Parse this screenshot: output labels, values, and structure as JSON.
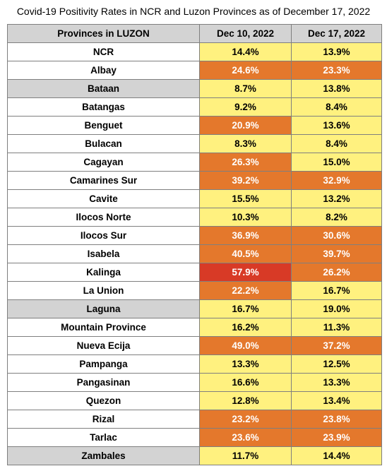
{
  "chart_data": {
    "type": "table",
    "title": "Covid-19 Positivity Rates in NCR and Luzon Provinces as of December 17, 2022",
    "columns": [
      "Provinces in LUZON",
      "Dec 10, 2022",
      "Dec 17, 2022"
    ],
    "rows": [
      {
        "province": "NCR",
        "dec10": "14.4%",
        "dec17": "13.9%",
        "dec10_level": "yellow",
        "dec17_level": "yellow",
        "highlight": false
      },
      {
        "province": "Albay",
        "dec10": "24.6%",
        "dec17": "23.3%",
        "dec10_level": "orange",
        "dec17_level": "orange",
        "highlight": false
      },
      {
        "province": "Bataan",
        "dec10": "8.7%",
        "dec17": "13.8%",
        "dec10_level": "yellow",
        "dec17_level": "yellow",
        "highlight": true
      },
      {
        "province": "Batangas",
        "dec10": "9.2%",
        "dec17": "8.4%",
        "dec10_level": "yellow",
        "dec17_level": "yellow",
        "highlight": false
      },
      {
        "province": "Benguet",
        "dec10": "20.9%",
        "dec17": "13.6%",
        "dec10_level": "orange",
        "dec17_level": "yellow",
        "highlight": false
      },
      {
        "province": "Bulacan",
        "dec10": "8.3%",
        "dec17": "8.4%",
        "dec10_level": "yellow",
        "dec17_level": "yellow",
        "highlight": false
      },
      {
        "province": "Cagayan",
        "dec10": "26.3%",
        "dec17": "15.0%",
        "dec10_level": "orange",
        "dec17_level": "yellow",
        "highlight": false
      },
      {
        "province": "Camarines Sur",
        "dec10": "39.2%",
        "dec17": "32.9%",
        "dec10_level": "orange",
        "dec17_level": "orange",
        "highlight": false
      },
      {
        "province": "Cavite",
        "dec10": "15.5%",
        "dec17": "13.2%",
        "dec10_level": "yellow",
        "dec17_level": "yellow",
        "highlight": false
      },
      {
        "province": "Ilocos Norte",
        "dec10": "10.3%",
        "dec17": "8.2%",
        "dec10_level": "yellow",
        "dec17_level": "yellow",
        "highlight": false
      },
      {
        "province": "Ilocos Sur",
        "dec10": "36.9%",
        "dec17": "30.6%",
        "dec10_level": "orange",
        "dec17_level": "orange",
        "highlight": false
      },
      {
        "province": "Isabela",
        "dec10": "40.5%",
        "dec17": "39.7%",
        "dec10_level": "orange",
        "dec17_level": "orange",
        "highlight": false
      },
      {
        "province": "Kalinga",
        "dec10": "57.9%",
        "dec17": "26.2%",
        "dec10_level": "red",
        "dec17_level": "orange",
        "highlight": false
      },
      {
        "province": "La Union",
        "dec10": "22.2%",
        "dec17": "16.7%",
        "dec10_level": "orange",
        "dec17_level": "yellow",
        "highlight": false
      },
      {
        "province": "Laguna",
        "dec10": "16.7%",
        "dec17": "19.0%",
        "dec10_level": "yellow",
        "dec17_level": "yellow",
        "highlight": true
      },
      {
        "province": "Mountain Province",
        "dec10": "16.2%",
        "dec17": "11.3%",
        "dec10_level": "yellow",
        "dec17_level": "yellow",
        "highlight": false
      },
      {
        "province": "Nueva Ecija",
        "dec10": "49.0%",
        "dec17": "37.2%",
        "dec10_level": "orange",
        "dec17_level": "orange",
        "highlight": false
      },
      {
        "province": "Pampanga",
        "dec10": "13.3%",
        "dec17": "12.5%",
        "dec10_level": "yellow",
        "dec17_level": "yellow",
        "highlight": false
      },
      {
        "province": "Pangasinan",
        "dec10": "16.6%",
        "dec17": "13.3%",
        "dec10_level": "yellow",
        "dec17_level": "yellow",
        "highlight": false
      },
      {
        "province": "Quezon",
        "dec10": "12.8%",
        "dec17": "13.4%",
        "dec10_level": "yellow",
        "dec17_level": "yellow",
        "highlight": false
      },
      {
        "province": "Rizal",
        "dec10": "23.2%",
        "dec17": "23.8%",
        "dec10_level": "orange",
        "dec17_level": "orange",
        "highlight": false
      },
      {
        "province": "Tarlac",
        "dec10": "23.6%",
        "dec17": "23.9%",
        "dec10_level": "orange",
        "dec17_level": "orange",
        "highlight": false
      },
      {
        "province": "Zambales",
        "dec10": "11.7%",
        "dec17": "14.4%",
        "dec10_level": "yellow",
        "dec17_level": "yellow",
        "highlight": true
      }
    ],
    "colors": {
      "yellow": "#fff17f",
      "orange": "#e4782c",
      "red": "#d83a26",
      "header_gray": "#d3d3d3",
      "highlight_gray": "#d3d3d3"
    }
  }
}
